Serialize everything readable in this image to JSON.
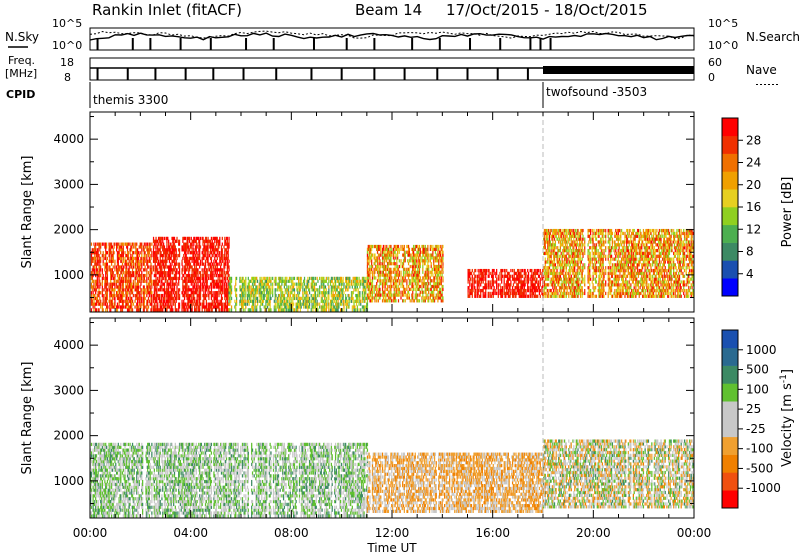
{
  "header": {
    "station": "Rankin Inlet (fitACF)",
    "beam": "Beam 14",
    "date_range": "17/Oct/2015 - 18/Oct/2015"
  },
  "summary_panels": {
    "nsky_label": "N.Sky",
    "nsky_ticks": [
      "10^5",
      "10^0"
    ],
    "nsearch_label": "N.Search",
    "nsearch_ticks": [
      "10^5",
      "10^0"
    ],
    "freq_label_line1": "Freq.",
    "freq_label_line2": "[MHz]",
    "freq_ticks": [
      "18",
      "8"
    ],
    "nave_label": "Nave",
    "nave_ticks": [
      "60",
      "0"
    ],
    "cpid_label": "CPID",
    "cpid_segments": [
      {
        "name": "themis 3300",
        "start_hour": 0,
        "end_hour": 18
      },
      {
        "name": "twofsound -3503",
        "start_hour": 18,
        "end_hour": 24
      }
    ]
  },
  "axes": {
    "ylabel": "Slant Range [km]",
    "xlabel": "Time UT",
    "x_tick_labels": [
      "00:00",
      "04:00",
      "08:00",
      "12:00",
      "16:00",
      "20:00",
      "00:00"
    ],
    "y_tick_labels": [
      "1000",
      "2000",
      "3000",
      "4000"
    ]
  },
  "power_colorbar": {
    "label": "Power [dB]",
    "ticks": [
      "4",
      "8",
      "12",
      "16",
      "20",
      "24",
      "28"
    ]
  },
  "velocity_colorbar": {
    "label": "Velocity [m s^-1]",
    "ticks": [
      "1000",
      "500",
      "100",
      "25",
      "-25",
      "-100",
      "-500",
      "-1000"
    ]
  },
  "chart_data": [
    {
      "type": "heatmap",
      "title": "",
      "xlabel": "Time UT",
      "ylabel": "Slant Range [km]",
      "xlim_hours": [
        0,
        24
      ],
      "ylim_km": [
        180,
        4600
      ],
      "colorbar": "Power [dB]",
      "colorbar_range": [
        0,
        30
      ],
      "colors": [
        "#0000ff",
        "#1a4fb0",
        "#3c8a64",
        "#4caf50",
        "#8fd020",
        "#e6d020",
        "#f0a000",
        "#f07000",
        "#f03000",
        "#ff0000"
      ],
      "regions": [
        {
          "hours": [
            0,
            2.5
          ],
          "range_km": [
            200,
            1700
          ],
          "power_db": [
            20,
            30
          ]
        },
        {
          "hours": [
            2.5,
            5.5
          ],
          "range_km": [
            200,
            1800
          ],
          "power_db": [
            24,
            30
          ]
        },
        {
          "hours": [
            5.5,
            11
          ],
          "range_km": [
            200,
            900
          ],
          "power_db": [
            8,
            20
          ]
        },
        {
          "hours": [
            11,
            14
          ],
          "range_km": [
            400,
            1600
          ],
          "power_db": [
            12,
            28
          ]
        },
        {
          "hours": [
            15,
            18
          ],
          "range_km": [
            500,
            1100
          ],
          "power_db": [
            24,
            30
          ]
        },
        {
          "hours": [
            18,
            24
          ],
          "range_km": [
            500,
            2000
          ],
          "power_db": [
            12,
            28
          ]
        }
      ]
    },
    {
      "type": "heatmap",
      "title": "",
      "xlabel": "Time UT",
      "ylabel": "Slant Range [km]",
      "xlim_hours": [
        0,
        24
      ],
      "ylim_km": [
        180,
        4600
      ],
      "colorbar": "Velocity [m s^-1]",
      "colorbar_range": [
        -1000,
        1000
      ],
      "colors": [
        "#ff0000",
        "#f05010",
        "#f08000",
        "#f0a030",
        "#c8c8c8",
        "#c8c8c8",
        "#60c030",
        "#3c8a64",
        "#2a6a90",
        "#1a50b0"
      ],
      "regions": [
        {
          "hours": [
            0,
            11
          ],
          "range_km": [
            200,
            1800
          ],
          "velocity_ms": [
            -100,
            500
          ]
        },
        {
          "hours": [
            11,
            18
          ],
          "range_km": [
            300,
            1600
          ],
          "velocity_ms": [
            -500,
            -25
          ]
        },
        {
          "hours": [
            18,
            24
          ],
          "range_km": [
            400,
            1900
          ],
          "velocity_ms": [
            -500,
            500
          ]
        }
      ]
    }
  ]
}
